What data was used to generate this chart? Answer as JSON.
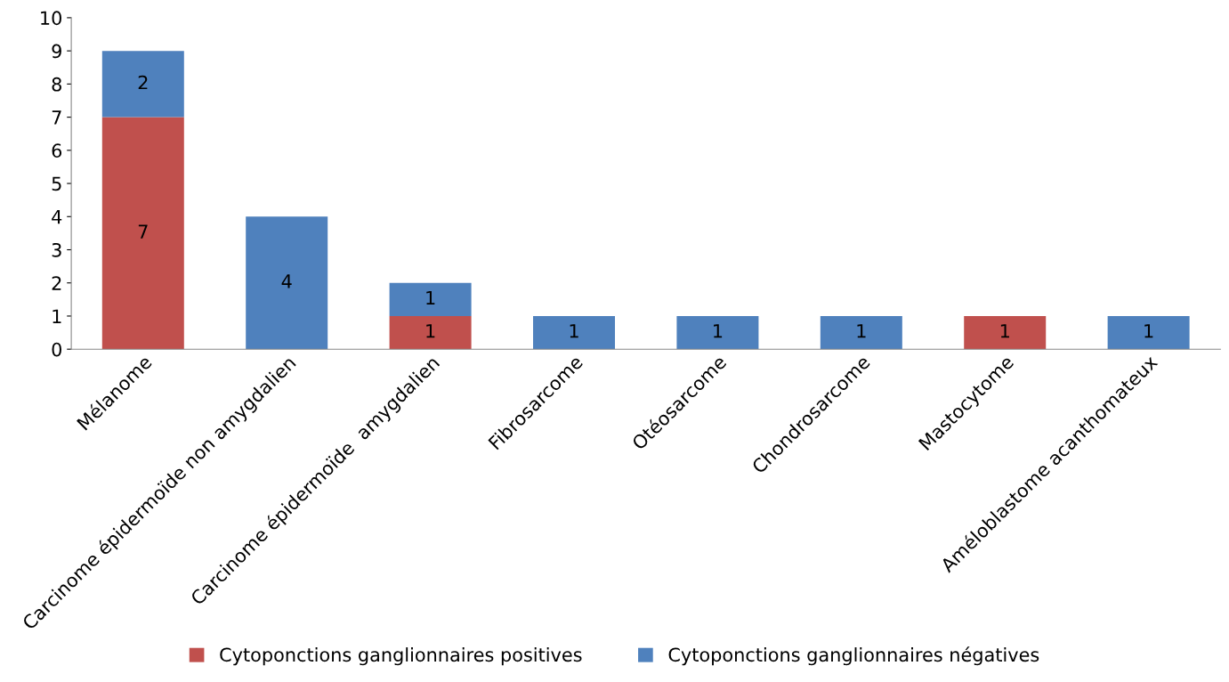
{
  "chart_data": {
    "type": "bar",
    "stacked": true,
    "categories": [
      "Mélanome",
      "Carcinome épidermoïde non amygdalien",
      "Carcinome épidermoïde  amygdalien",
      "Fibrosarcome",
      "Otéosarcome",
      "Chondrosarcome",
      "Mastocytome",
      "Améloblastome acanthomateux"
    ],
    "series": [
      {
        "name": "Cytoponctions ganglionnaires positives",
        "color": "#c0504d",
        "values": [
          7,
          0,
          1,
          0,
          0,
          0,
          1,
          0
        ],
        "value_labels": [
          "7",
          null,
          "1",
          null,
          null,
          null,
          "1",
          null
        ]
      },
      {
        "name": "Cytoponctions ganglionnaires négatives",
        "color": "#4f81bd",
        "values": [
          2,
          4,
          1,
          1,
          1,
          1,
          0,
          1
        ],
        "value_labels": [
          "2",
          "4",
          "1",
          "1",
          "1",
          "1",
          null,
          "1"
        ]
      }
    ],
    "ylim": [
      0,
      10
    ],
    "yticks": [
      0,
      1,
      2,
      3,
      4,
      5,
      6,
      7,
      8,
      9,
      10
    ],
    "grid": false,
    "legend": "bottom"
  }
}
